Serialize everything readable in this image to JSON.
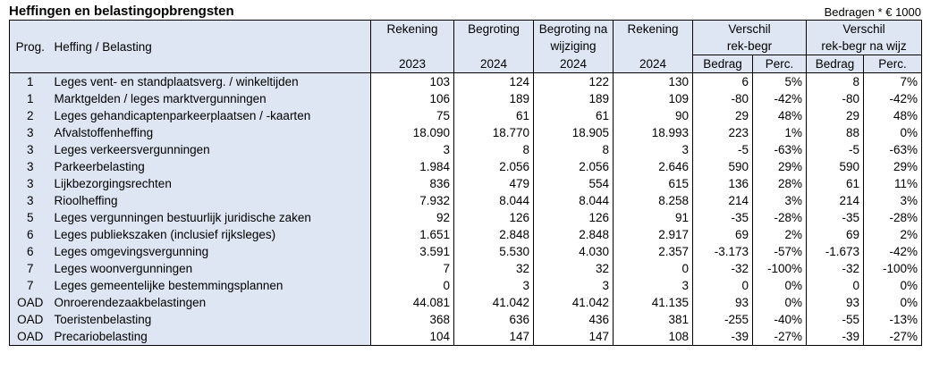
{
  "title": "Heffingen en belastingopbrengsten",
  "unit_note": "Bedragen * € 1000",
  "headers": {
    "prog": "Prog.",
    "heffing": "Heffing / Belasting",
    "rekening_2023": {
      "line1": "Rekening",
      "line2": "",
      "year": "2023"
    },
    "begroting_2024": {
      "line1": "Begroting",
      "line2": "",
      "year": "2024"
    },
    "begroting_wijz_2024": {
      "line1": "Begroting na",
      "line2": "wijziging",
      "year": "2024"
    },
    "rekening_2024": {
      "line1": "Rekening",
      "line2": "",
      "year": "2024"
    },
    "verschil_rb": {
      "line1": "Verschil",
      "line2": "rek-begr"
    },
    "verschil_rbw": {
      "line1": "Verschil",
      "line2": "rek-begr na wijz"
    },
    "bedrag": "Bedrag",
    "perc": "Perc."
  },
  "rows": [
    {
      "prog": "1",
      "name": "Leges vent- en standplaatsverg. / winkeltijden",
      "r2023": "103",
      "b2024": "124",
      "bw2024": "122",
      "r2024": "130",
      "v1b": "6",
      "v1p": "5%",
      "v2b": "8",
      "v2p": "7%"
    },
    {
      "prog": "1",
      "name": "Marktgelden / leges marktvergunningen",
      "r2023": "106",
      "b2024": "189",
      "bw2024": "189",
      "r2024": "109",
      "v1b": "-80",
      "v1p": "-42%",
      "v2b": "-80",
      "v2p": "-42%"
    },
    {
      "prog": "2",
      "name": "Leges gehandicaptenparkeerplaatsen / -kaarten",
      "r2023": "75",
      "b2024": "61",
      "bw2024": "61",
      "r2024": "90",
      "v1b": "29",
      "v1p": "48%",
      "v2b": "29",
      "v2p": "48%"
    },
    {
      "prog": "3",
      "name": "Afvalstoffenheffing",
      "r2023": "18.090",
      "b2024": "18.770",
      "bw2024": "18.905",
      "r2024": "18.993",
      "v1b": "223",
      "v1p": "1%",
      "v2b": "88",
      "v2p": "0%"
    },
    {
      "prog": "3",
      "name": "Leges verkeersvergunningen",
      "r2023": "3",
      "b2024": "8",
      "bw2024": "8",
      "r2024": "3",
      "v1b": "-5",
      "v1p": "-63%",
      "v2b": "-5",
      "v2p": "-63%"
    },
    {
      "prog": "3",
      "name": "Parkeerbelasting",
      "r2023": "1.984",
      "b2024": "2.056",
      "bw2024": "2.056",
      "r2024": "2.646",
      "v1b": "590",
      "v1p": "29%",
      "v2b": "590",
      "v2p": "29%"
    },
    {
      "prog": "3",
      "name": "Lijkbezorgingsrechten",
      "r2023": "836",
      "b2024": "479",
      "bw2024": "554",
      "r2024": "615",
      "v1b": "136",
      "v1p": "28%",
      "v2b": "61",
      "v2p": "11%"
    },
    {
      "prog": "3",
      "name": "Rioolheffing",
      "r2023": "7.932",
      "b2024": "8.044",
      "bw2024": "8.044",
      "r2024": "8.258",
      "v1b": "214",
      "v1p": "3%",
      "v2b": "214",
      "v2p": "3%"
    },
    {
      "prog": "5",
      "name": "Leges vergunningen bestuurlijk juridische zaken",
      "r2023": "92",
      "b2024": "126",
      "bw2024": "126",
      "r2024": "91",
      "v1b": "-35",
      "v1p": "-28%",
      "v2b": "-35",
      "v2p": "-28%"
    },
    {
      "prog": "6",
      "name": "Leges publiekszaken (inclusief rijksleges)",
      "r2023": "1.651",
      "b2024": "2.848",
      "bw2024": "2.848",
      "r2024": "2.917",
      "v1b": "69",
      "v1p": "2%",
      "v2b": "69",
      "v2p": "2%"
    },
    {
      "prog": "6",
      "name": "Leges omgevingsvergunning",
      "r2023": "3.591",
      "b2024": "5.530",
      "bw2024": "4.030",
      "r2024": "2.357",
      "v1b": "-3.173",
      "v1p": "-57%",
      "v2b": "-1.673",
      "v2p": "-42%"
    },
    {
      "prog": "7",
      "name": "Leges woonvergunningen",
      "r2023": "7",
      "b2024": "32",
      "bw2024": "32",
      "r2024": "0",
      "v1b": "-32",
      "v1p": "-100%",
      "v2b": "-32",
      "v2p": "-100%"
    },
    {
      "prog": "7",
      "name": "Leges gemeentelijke bestemmingsplannen",
      "r2023": "0",
      "b2024": "3",
      "bw2024": "3",
      "r2024": "3",
      "v1b": "0",
      "v1p": "0%",
      "v2b": "0",
      "v2p": "0%"
    },
    {
      "prog": "OAD",
      "name": "Onroerendezaakbelastingen",
      "r2023": "44.081",
      "b2024": "41.042",
      "bw2024": "41.042",
      "r2024": "41.135",
      "v1b": "93",
      "v1p": "0%",
      "v2b": "93",
      "v2p": "0%"
    },
    {
      "prog": "OAD",
      "name": "Toeristenbelasting",
      "r2023": "368",
      "b2024": "636",
      "bw2024": "436",
      "r2024": "381",
      "v1b": "-255",
      "v1p": "-40%",
      "v2b": "-55",
      "v2p": "-13%"
    },
    {
      "prog": "OAD",
      "name": "Precariobelasting",
      "r2023": "104",
      "b2024": "147",
      "bw2024": "147",
      "r2024": "108",
      "v1b": "-39",
      "v1p": "-27%",
      "v2b": "-39",
      "v2p": "-27%"
    }
  ]
}
